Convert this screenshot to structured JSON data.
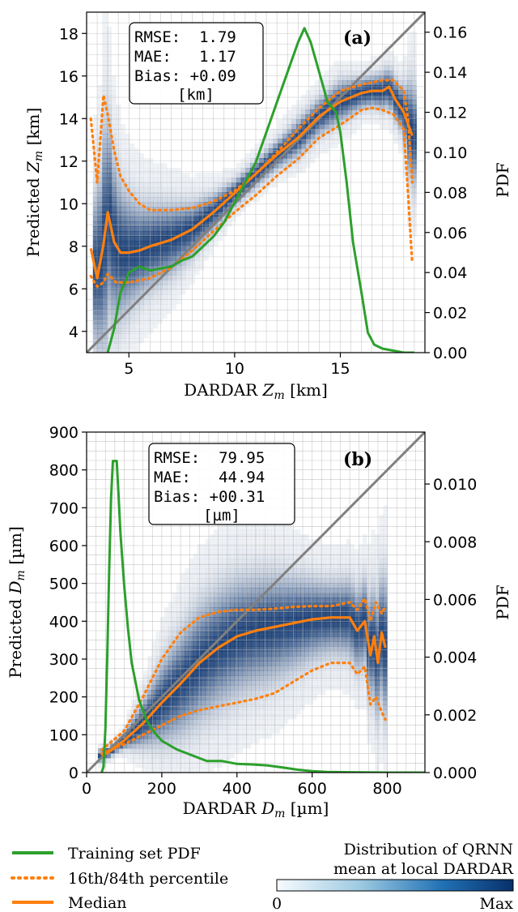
{
  "chart_data": [
    {
      "type": "heatmap",
      "panel_label": "(a)",
      "xlabel": "DARDAR Z_m [km]",
      "ylabel": "Predicted Z_m [km]",
      "y2label": "PDF",
      "xlim": [
        3,
        19
      ],
      "ylim": [
        3,
        19
      ],
      "y2lim": [
        0,
        0.17
      ],
      "xticks": [
        5,
        10,
        15
      ],
      "yticks": [
        4,
        6,
        8,
        10,
        12,
        14,
        16,
        18
      ],
      "y2ticks": [
        "0.00",
        "0.02",
        "0.04",
        "0.06",
        "0.08",
        "0.10",
        "0.12",
        "0.14",
        "0.16"
      ],
      "stats": [
        "RMSE:  1.79",
        "MAE:   1.17",
        "Bias: +0.09",
        "[km]"
      ],
      "series": [
        {
          "name": "Median",
          "x": [
            3.2,
            3.5,
            3.8,
            4.0,
            4.3,
            4.6,
            5.0,
            5.5,
            6.0,
            7.0,
            8.0,
            9.0,
            10.0,
            11.0,
            12.0,
            13.0,
            14.0,
            15.0,
            16.0,
            16.5,
            17.0,
            17.3,
            17.6,
            18.0,
            18.4
          ],
          "y": [
            7.9,
            6.5,
            8.1,
            9.6,
            8.2,
            7.7,
            7.7,
            7.8,
            8.0,
            8.3,
            8.8,
            9.6,
            10.5,
            11.4,
            12.3,
            13.1,
            14.1,
            14.8,
            15.2,
            15.3,
            15.3,
            15.5,
            14.9,
            14.3,
            13.2
          ]
        },
        {
          "name": "16th percentile",
          "x": [
            3.2,
            3.5,
            3.8,
            4.0,
            4.4,
            5.0,
            6.0,
            7.0,
            8.0,
            9.0,
            10.0,
            11.0,
            12.0,
            13.0,
            14.0,
            15.0,
            16.0,
            16.5,
            17.0,
            17.5,
            18.0,
            18.2,
            18.4
          ],
          "y": [
            6.6,
            6.1,
            6.3,
            6.7,
            6.3,
            6.3,
            6.5,
            7.0,
            7.8,
            8.7,
            9.6,
            10.4,
            11.3,
            12.1,
            13.1,
            13.7,
            14.4,
            14.5,
            14.4,
            14.2,
            13.5,
            10.5,
            7.2
          ]
        },
        {
          "name": "84th percentile",
          "x": [
            3.2,
            3.5,
            3.8,
            4.0,
            4.3,
            4.6,
            5.0,
            5.5,
            6.0,
            7.0,
            8.0,
            9.0,
            10.0,
            11.0,
            12.0,
            13.0,
            14.0,
            15.0,
            16.0,
            17.0,
            17.5,
            18.0,
            18.2,
            18.4
          ],
          "y": [
            14.0,
            11.0,
            15.1,
            14.2,
            12.5,
            11.3,
            10.6,
            10.0,
            9.7,
            9.7,
            9.8,
            10.1,
            10.6,
            11.4,
            12.4,
            13.5,
            14.5,
            15.3,
            15.6,
            15.8,
            15.8,
            15.3,
            14.0,
            11.0
          ]
        },
        {
          "name": "Training set PDF",
          "axis": "y2",
          "x": [
            4.0,
            4.3,
            4.6,
            5.0,
            5.5,
            6.0,
            6.5,
            7.0,
            7.5,
            8.0,
            8.5,
            9.0,
            9.5,
            10.0,
            10.5,
            11.0,
            11.5,
            12.0,
            12.5,
            13.0,
            13.3,
            13.6,
            14.0,
            14.4,
            14.8,
            15.0,
            15.3,
            15.6,
            16.0,
            16.3,
            16.6,
            17.0,
            17.5,
            18.0,
            18.5
          ],
          "y": [
            0.0,
            0.012,
            0.03,
            0.04,
            0.043,
            0.041,
            0.042,
            0.043,
            0.046,
            0.048,
            0.053,
            0.058,
            0.065,
            0.075,
            0.085,
            0.095,
            0.11,
            0.125,
            0.14,
            0.155,
            0.162,
            0.155,
            0.14,
            0.125,
            0.12,
            0.11,
            0.085,
            0.055,
            0.03,
            0.01,
            0.004,
            0.002,
            0.001,
            0.0,
            0.0
          ]
        }
      ]
    },
    {
      "type": "heatmap",
      "panel_label": "(b)",
      "xlabel": "DARDAR D_m [µm]",
      "ylabel": "Predicted D_m [µm]",
      "y2label": "PDF",
      "xlim": [
        0,
        900
      ],
      "ylim": [
        0,
        900
      ],
      "y2lim": [
        0,
        0.0118
      ],
      "xticks": [
        0,
        200,
        400,
        600,
        800
      ],
      "yticks": [
        0,
        100,
        200,
        300,
        400,
        500,
        600,
        700,
        800,
        900
      ],
      "y2ticks": [
        "0.000",
        "0.002",
        "0.004",
        "0.006",
        "0.008",
        "0.010"
      ],
      "stats": [
        "RMSE:  79.95",
        "MAE:   44.94",
        "Bias: +00.31",
        "[µm]"
      ],
      "series": [
        {
          "name": "Median",
          "x": [
            40,
            60,
            100,
            150,
            200,
            250,
            300,
            350,
            400,
            450,
            500,
            550,
            600,
            650,
            700,
            720,
            740,
            755,
            765,
            775,
            785,
            795
          ],
          "y": [
            45,
            55,
            85,
            130,
            185,
            235,
            290,
            330,
            360,
            375,
            385,
            395,
            405,
            410,
            410,
            375,
            400,
            310,
            360,
            290,
            370,
            330
          ]
        },
        {
          "name": "16th percentile",
          "x": [
            40,
            100,
            150,
            200,
            250,
            300,
            350,
            400,
            450,
            500,
            550,
            600,
            650,
            700,
            720,
            740,
            755,
            770,
            785,
            795
          ],
          "y": [
            50,
            75,
            100,
            125,
            150,
            165,
            175,
            185,
            195,
            210,
            240,
            270,
            290,
            290,
            260,
            280,
            180,
            200,
            160,
            140
          ]
        },
        {
          "name": "84th percentile",
          "x": [
            40,
            100,
            150,
            200,
            250,
            300,
            350,
            400,
            450,
            500,
            550,
            600,
            650,
            700,
            720,
            740,
            755,
            770,
            785,
            795
          ],
          "y": [
            60,
            110,
            200,
            300,
            370,
            410,
            425,
            430,
            430,
            433,
            438,
            440,
            440,
            450,
            430,
            460,
            400,
            450,
            420,
            440
          ]
        },
        {
          "name": "Training set PDF",
          "axis": "y2",
          "x": [
            40,
            45,
            50,
            55,
            60,
            65,
            70,
            75,
            80,
            85,
            90,
            100,
            110,
            120,
            140,
            160,
            180,
            200,
            240,
            280,
            320,
            360,
            400,
            440,
            480,
            520,
            560,
            600,
            640,
            700,
            800,
            900
          ],
          "y": [
            0.0,
            0.0002,
            0.0015,
            0.004,
            0.007,
            0.0095,
            0.0108,
            0.0108,
            0.0108,
            0.0096,
            0.0083,
            0.0065,
            0.005,
            0.0038,
            0.0025,
            0.0018,
            0.0014,
            0.0011,
            0.0008,
            0.0006,
            0.0004,
            0.0004,
            0.0003,
            0.00028,
            0.00025,
            0.00018,
            0.0001,
            5e-05,
            2e-05,
            1e-05,
            0.0,
            0.0
          ]
        }
      ]
    }
  ],
  "legend": {
    "training": "Training set PDF",
    "percentile": "16th/84th percentile",
    "median": "Median"
  },
  "colorbar": {
    "title_line1": "Distribution of QRNN",
    "title_line2": "mean at local DARDAR",
    "min_label": "0",
    "max_label": "Max"
  },
  "colors": {
    "training": "#2ca02c",
    "median": "#ff7f0e",
    "diagonal": "#808080",
    "heat": "#08306b"
  }
}
